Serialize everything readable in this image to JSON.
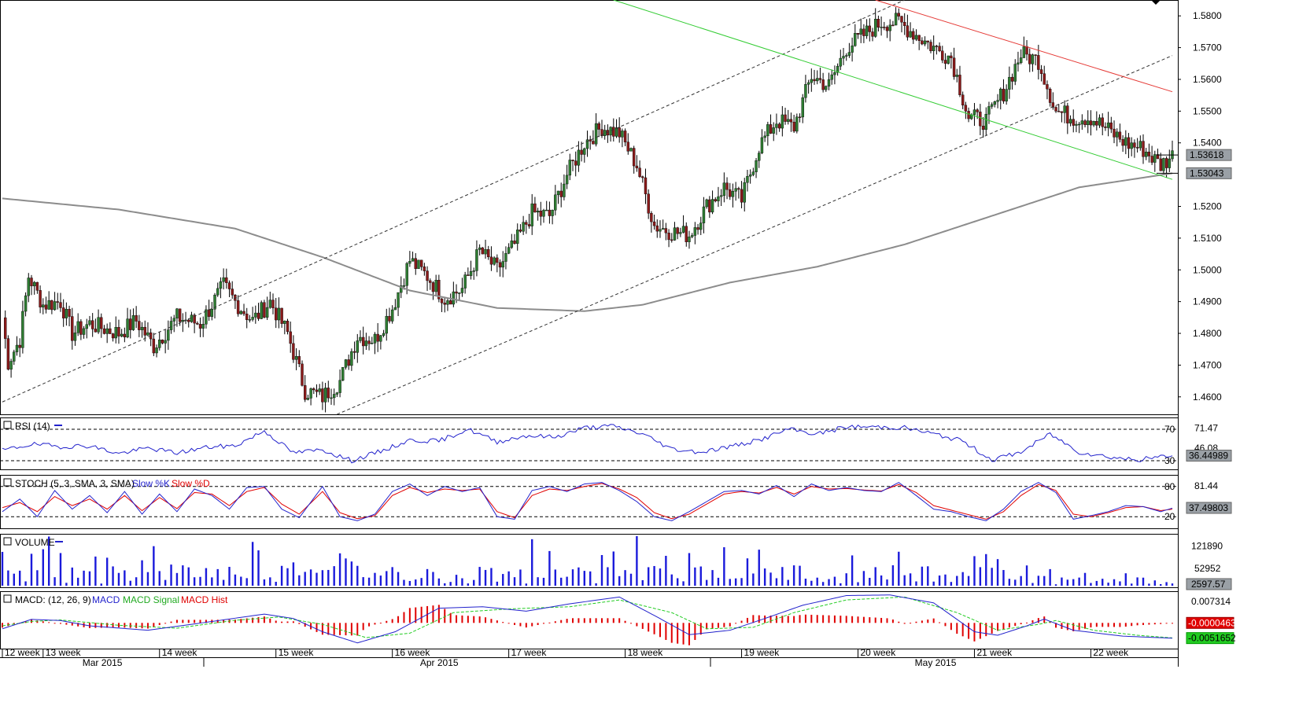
{
  "chart_data": {
    "type": "candlestick",
    "price_axis": {
      "ticks": [
        "1.5800",
        "1.5700",
        "1.5600",
        "1.5500",
        "1.5400",
        "1.5200",
        "1.5100",
        "1.5000",
        "1.4900",
        "1.4800",
        "1.4700",
        "1.4600"
      ],
      "tick_values": [
        1.58,
        1.57,
        1.56,
        1.55,
        1.54,
        1.52,
        1.51,
        1.5,
        1.49,
        1.48,
        1.47,
        1.46
      ],
      "range": [
        1.4545,
        1.585
      ],
      "last_price_label": "1.53618",
      "last_price": 1.53618,
      "ma_label": "1.53043",
      "ma_value": 1.53043
    },
    "price_anchors": [
      [
        0,
        1.485
      ],
      [
        2,
        1.471
      ],
      [
        6,
        1.478
      ],
      [
        9,
        1.498
      ],
      [
        14,
        1.489
      ],
      [
        20,
        1.49
      ],
      [
        24,
        1.48
      ],
      [
        30,
        1.483
      ],
      [
        40,
        1.48
      ],
      [
        46,
        1.484
      ],
      [
        52,
        1.476
      ],
      [
        60,
        1.485
      ],
      [
        68,
        1.483
      ],
      [
        76,
        1.495
      ],
      [
        80,
        1.49
      ],
      [
        86,
        1.484
      ],
      [
        92,
        1.49
      ],
      [
        98,
        1.48
      ],
      [
        104,
        1.462
      ],
      [
        110,
        1.46
      ],
      [
        116,
        1.465
      ],
      [
        122,
        1.479
      ],
      [
        128,
        1.478
      ],
      [
        134,
        1.488
      ],
      [
        140,
        1.503
      ],
      [
        146,
        1.498
      ],
      [
        152,
        1.491
      ],
      [
        158,
        1.494
      ],
      [
        164,
        1.506
      ],
      [
        170,
        1.5
      ],
      [
        176,
        1.508
      ],
      [
        182,
        1.518
      ],
      [
        188,
        1.517
      ],
      [
        194,
        1.53
      ],
      [
        200,
        1.54
      ],
      [
        206,
        1.545
      ],
      [
        212,
        1.543
      ],
      [
        218,
        1.533
      ],
      [
        224,
        1.514
      ],
      [
        230,
        1.512
      ],
      [
        236,
        1.511
      ],
      [
        242,
        1.52
      ],
      [
        248,
        1.526
      ],
      [
        254,
        1.522
      ],
      [
        260,
        1.539
      ],
      [
        266,
        1.547
      ],
      [
        272,
        1.545
      ],
      [
        278,
        1.561
      ],
      [
        284,
        1.558
      ],
      [
        290,
        1.57
      ],
      [
        296,
        1.574
      ],
      [
        302,
        1.578
      ],
      [
        308,
        1.578
      ],
      [
        314,
        1.574
      ],
      [
        320,
        1.57
      ],
      [
        326,
        1.567
      ],
      [
        332,
        1.548
      ],
      [
        338,
        1.547
      ],
      [
        344,
        1.556
      ],
      [
        350,
        1.568
      ],
      [
        356,
        1.566
      ],
      [
        362,
        1.55
      ],
      [
        368,
        1.548
      ],
      [
        374,
        1.548
      ],
      [
        380,
        1.544
      ],
      [
        386,
        1.54
      ],
      [
        392,
        1.538
      ],
      [
        398,
        1.533
      ],
      [
        402,
        1.536
      ]
    ],
    "series": [
      {
        "name": "RSI (14)",
        "ticks": [
          "71.47",
          "46.08"
        ],
        "levels": [
          70,
          30
        ],
        "last_label": "36.44989",
        "last_value": 36.44989,
        "anchors": [
          [
            0,
            43
          ],
          [
            10,
            51
          ],
          [
            20,
            48
          ],
          [
            30,
            49
          ],
          [
            40,
            39
          ],
          [
            50,
            46
          ],
          [
            60,
            40
          ],
          [
            70,
            47
          ],
          [
            80,
            49
          ],
          [
            90,
            68
          ],
          [
            100,
            40
          ],
          [
            110,
            44
          ],
          [
            120,
            30
          ],
          [
            130,
            42
          ],
          [
            140,
            56
          ],
          [
            150,
            55
          ],
          [
            160,
            70
          ],
          [
            170,
            54
          ],
          [
            180,
            62
          ],
          [
            190,
            60
          ],
          [
            200,
            72
          ],
          [
            210,
            74
          ],
          [
            220,
            64
          ],
          [
            230,
            45
          ],
          [
            240,
            41
          ],
          [
            250,
            48
          ],
          [
            260,
            56
          ],
          [
            270,
            70
          ],
          [
            280,
            64
          ],
          [
            290,
            73
          ],
          [
            300,
            73
          ],
          [
            310,
            72
          ],
          [
            320,
            64
          ],
          [
            330,
            55
          ],
          [
            340,
            31
          ],
          [
            350,
            41
          ],
          [
            360,
            64
          ],
          [
            370,
            41
          ],
          [
            380,
            35
          ],
          [
            390,
            31
          ],
          [
            400,
            36
          ]
        ]
      },
      {
        "name": "STOCH (5, 3, SMA, 3, SMA)",
        "ticks": [
          "81.44"
        ],
        "levels": [
          80,
          20
        ],
        "last_label": "37.49803",
        "last_value": 37.49803,
        "legend": [
          "Slow %K",
          "Slow %D"
        ],
        "k_anchors": [
          [
            0,
            30
          ],
          [
            6,
            55
          ],
          [
            12,
            20
          ],
          [
            18,
            72
          ],
          [
            24,
            35
          ],
          [
            30,
            62
          ],
          [
            36,
            28
          ],
          [
            42,
            70
          ],
          [
            48,
            25
          ],
          [
            54,
            65
          ],
          [
            60,
            30
          ],
          [
            66,
            75
          ],
          [
            72,
            62
          ],
          [
            78,
            35
          ],
          [
            84,
            78
          ],
          [
            90,
            80
          ],
          [
            96,
            35
          ],
          [
            102,
            18
          ],
          [
            110,
            80
          ],
          [
            116,
            20
          ],
          [
            122,
            12
          ],
          [
            128,
            25
          ],
          [
            134,
            70
          ],
          [
            140,
            85
          ],
          [
            146,
            62
          ],
          [
            152,
            80
          ],
          [
            158,
            70
          ],
          [
            164,
            78
          ],
          [
            170,
            20
          ],
          [
            176,
            15
          ],
          [
            182,
            72
          ],
          [
            188,
            80
          ],
          [
            194,
            70
          ],
          [
            200,
            85
          ],
          [
            206,
            88
          ],
          [
            212,
            72
          ],
          [
            218,
            50
          ],
          [
            224,
            20
          ],
          [
            230,
            12
          ],
          [
            236,
            30
          ],
          [
            242,
            50
          ],
          [
            248,
            70
          ],
          [
            254,
            72
          ],
          [
            260,
            65
          ],
          [
            266,
            82
          ],
          [
            272,
            60
          ],
          [
            278,
            85
          ],
          [
            284,
            72
          ],
          [
            290,
            78
          ],
          [
            296,
            72
          ],
          [
            302,
            70
          ],
          [
            308,
            88
          ],
          [
            314,
            62
          ],
          [
            320,
            35
          ],
          [
            326,
            30
          ],
          [
            332,
            20
          ],
          [
            338,
            12
          ],
          [
            344,
            35
          ],
          [
            350,
            70
          ],
          [
            356,
            88
          ],
          [
            362,
            68
          ],
          [
            368,
            15
          ],
          [
            374,
            22
          ],
          [
            380,
            30
          ],
          [
            386,
            42
          ],
          [
            392,
            40
          ],
          [
            398,
            30
          ],
          [
            402,
            37
          ]
        ],
        "d_anchors": [
          [
            0,
            38
          ],
          [
            6,
            48
          ],
          [
            12,
            30
          ],
          [
            18,
            60
          ],
          [
            24,
            42
          ],
          [
            30,
            55
          ],
          [
            36,
            35
          ],
          [
            42,
            62
          ],
          [
            48,
            32
          ],
          [
            54,
            58
          ],
          [
            60,
            36
          ],
          [
            66,
            68
          ],
          [
            72,
            65
          ],
          [
            78,
            42
          ],
          [
            84,
            70
          ],
          [
            90,
            78
          ],
          [
            96,
            45
          ],
          [
            102,
            25
          ],
          [
            110,
            70
          ],
          [
            116,
            28
          ],
          [
            122,
            16
          ],
          [
            128,
            22
          ],
          [
            134,
            62
          ],
          [
            140,
            78
          ],
          [
            146,
            68
          ],
          [
            152,
            75
          ],
          [
            158,
            72
          ],
          [
            164,
            75
          ],
          [
            170,
            30
          ],
          [
            176,
            18
          ],
          [
            182,
            62
          ],
          [
            188,
            75
          ],
          [
            194,
            72
          ],
          [
            200,
            80
          ],
          [
            206,
            86
          ],
          [
            212,
            75
          ],
          [
            218,
            58
          ],
          [
            224,
            28
          ],
          [
            230,
            16
          ],
          [
            236,
            25
          ],
          [
            242,
            45
          ],
          [
            248,
            65
          ],
          [
            254,
            70
          ],
          [
            260,
            67
          ],
          [
            266,
            78
          ],
          [
            272,
            65
          ],
          [
            278,
            80
          ],
          [
            284,
            75
          ],
          [
            290,
            76
          ],
          [
            296,
            73
          ],
          [
            302,
            71
          ],
          [
            308,
            84
          ],
          [
            314,
            68
          ],
          [
            320,
            42
          ],
          [
            326,
            33
          ],
          [
            332,
            24
          ],
          [
            338,
            15
          ],
          [
            344,
            30
          ],
          [
            350,
            62
          ],
          [
            356,
            84
          ],
          [
            362,
            72
          ],
          [
            368,
            25
          ],
          [
            374,
            20
          ],
          [
            380,
            28
          ],
          [
            386,
            38
          ],
          [
            392,
            40
          ],
          [
            398,
            32
          ],
          [
            402,
            35
          ]
        ]
      },
      {
        "name": "VOLUME",
        "ticks": [
          "121890",
          "52952"
        ],
        "last_label": "2597.57",
        "last_value": 2597.57,
        "max": 160000
      },
      {
        "name": "MACD: (12, 26, 9)",
        "ticks": [
          "0.007314"
        ],
        "legend": [
          "MACD",
          "MACD Signal",
          "MACD Hist"
        ],
        "last_labels": [
          "-0.0000463",
          "-0.0051652"
        ],
        "range": [
          -0.0082,
          0.0105
        ],
        "macd_anchors": [
          [
            0,
            -0.002
          ],
          [
            10,
            0.0012
          ],
          [
            20,
            0.0008
          ],
          [
            30,
            -0.001
          ],
          [
            50,
            -0.0025
          ],
          [
            70,
            0.0002
          ],
          [
            90,
            0.003
          ],
          [
            100,
            0.0015
          ],
          [
            110,
            -0.003
          ],
          [
            122,
            -0.0068
          ],
          [
            135,
            -0.003
          ],
          [
            150,
            0.005
          ],
          [
            165,
            0.0055
          ],
          [
            180,
            0.004
          ],
          [
            195,
            0.0065
          ],
          [
            212,
            0.0088
          ],
          [
            225,
            0.002
          ],
          [
            236,
            -0.004
          ],
          [
            250,
            -0.0025
          ],
          [
            262,
            0.0015
          ],
          [
            275,
            0.006
          ],
          [
            290,
            0.0093
          ],
          [
            305,
            0.0095
          ],
          [
            320,
            0.0068
          ],
          [
            334,
            -0.003
          ],
          [
            342,
            -0.0042
          ],
          [
            352,
            -0.001
          ],
          [
            358,
            0.0013
          ],
          [
            368,
            -0.0025
          ],
          [
            385,
            -0.0045
          ],
          [
            402,
            -0.0052
          ]
        ],
        "signal_anchors": [
          [
            0,
            -0.001
          ],
          [
            10,
            0.0005
          ],
          [
            20,
            0.001
          ],
          [
            40,
            -0.0008
          ],
          [
            60,
            -0.0018
          ],
          [
            80,
            0.0009
          ],
          [
            95,
            0.002
          ],
          [
            110,
            -0.0005
          ],
          [
            125,
            -0.005
          ],
          [
            140,
            -0.0035
          ],
          [
            155,
            0.0035
          ],
          [
            175,
            0.0048
          ],
          [
            195,
            0.0055
          ],
          [
            212,
            0.0078
          ],
          [
            230,
            0.0035
          ],
          [
            242,
            -0.002
          ],
          [
            258,
            -0.0015
          ],
          [
            272,
            0.0035
          ],
          [
            290,
            0.0078
          ],
          [
            310,
            0.0088
          ],
          [
            328,
            0.0035
          ],
          [
            342,
            -0.0025
          ],
          [
            356,
            -0.0005
          ],
          [
            362,
            0.0008
          ],
          [
            375,
            -0.0025
          ],
          [
            390,
            -0.0042
          ],
          [
            402,
            -0.0051
          ]
        ]
      }
    ],
    "x_axis": {
      "week_labels": [
        {
          "bar": 0,
          "label": "12 week"
        },
        {
          "bar": 14,
          "label": "13 week"
        },
        {
          "bar": 54,
          "label": "14 week"
        },
        {
          "bar": 94,
          "label": "15 week"
        },
        {
          "bar": 134,
          "label": "16 week"
        },
        {
          "bar": 174,
          "label": "17 week"
        },
        {
          "bar": 214,
          "label": "18 week"
        },
        {
          "bar": 254,
          "label": "19 week"
        },
        {
          "bar": 294,
          "label": "20 week"
        },
        {
          "bar": 334,
          "label": "21 week"
        },
        {
          "bar": 374,
          "label": "22 week"
        }
      ],
      "month_labels": [
        {
          "bar": 34,
          "label": "Mar 2015"
        },
        {
          "bar": 150,
          "label": "Apr 2015"
        },
        {
          "bar": 320,
          "label": "May 2015"
        }
      ]
    },
    "colors": {
      "up": "#2e7d32",
      "down": "#8b1a1a",
      "ma": "#8c8c8c",
      "green_line": "#33cc33",
      "red_line": "#e53935",
      "rsi": "#2222cc",
      "volume": "#1a1adb",
      "macd_hist": "#e00000",
      "macd_signal": "#22cc22",
      "label_box": "#9aa0a6"
    }
  }
}
